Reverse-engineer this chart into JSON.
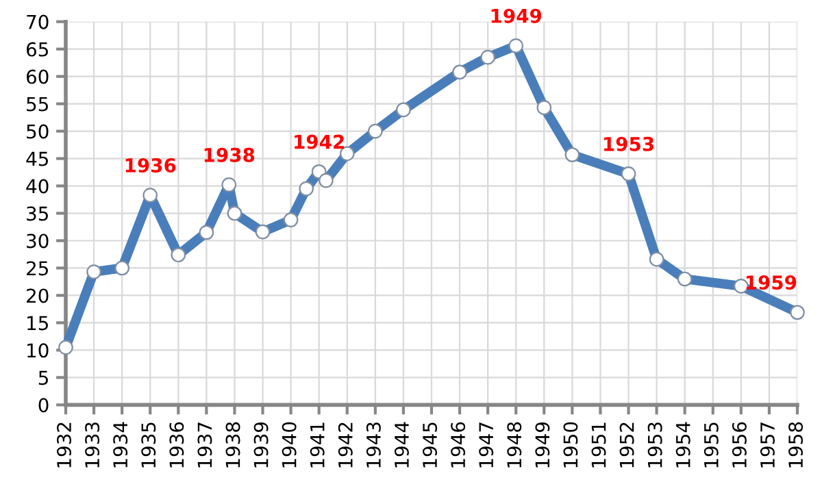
{
  "chart_data": {
    "type": "line",
    "x": [
      1932,
      1933,
      1934,
      1935,
      1936,
      1937,
      1937.8,
      1938,
      1939,
      1940,
      1940.55,
      1941,
      1941.25,
      1942,
      1943,
      1944,
      1946,
      1947,
      1948,
      1949,
      1950,
      1952,
      1953,
      1954,
      1956,
      1958
    ],
    "series": [
      {
        "color": "#4a7ebb",
        "values": [
          10.5,
          24.3,
          25,
          38.3,
          27.4,
          31.5,
          40.2,
          35,
          31.6,
          33.8,
          39.5,
          42.6,
          41,
          45.9,
          50,
          53.9,
          60.8,
          63.5,
          65.6,
          54.3,
          45.7,
          42.2,
          26.6,
          23,
          21.7,
          16.9
        ]
      }
    ],
    "xlim": [
      1932,
      1958
    ],
    "xticks": [
      1932,
      1933,
      1934,
      1935,
      1936,
      1937,
      1938,
      1939,
      1940,
      1941,
      1942,
      1943,
      1944,
      1945,
      1946,
      1947,
      1948,
      1949,
      1950,
      1951,
      1952,
      1953,
      1954,
      1955,
      1956,
      1957,
      1958
    ],
    "ylim": [
      0,
      70
    ],
    "yticks": [
      0,
      5,
      10,
      15,
      20,
      25,
      30,
      35,
      40,
      45,
      50,
      55,
      60,
      65,
      70
    ],
    "grid": true,
    "marker": "circle",
    "line_style": "solid",
    "annotations": [
      {
        "text": "1936",
        "x": 1935,
        "y": 38.3
      },
      {
        "text": "1938",
        "x": 1937.8,
        "y": 40.2
      },
      {
        "text": "1942",
        "x": 1941,
        "y": 42.6
      },
      {
        "text": "1949",
        "x": 1948,
        "y": 65.6
      },
      {
        "text": "1953",
        "x": 1952,
        "y": 42.2
      },
      {
        "text": "1959",
        "x": 1958,
        "y": 16.9
      }
    ]
  }
}
